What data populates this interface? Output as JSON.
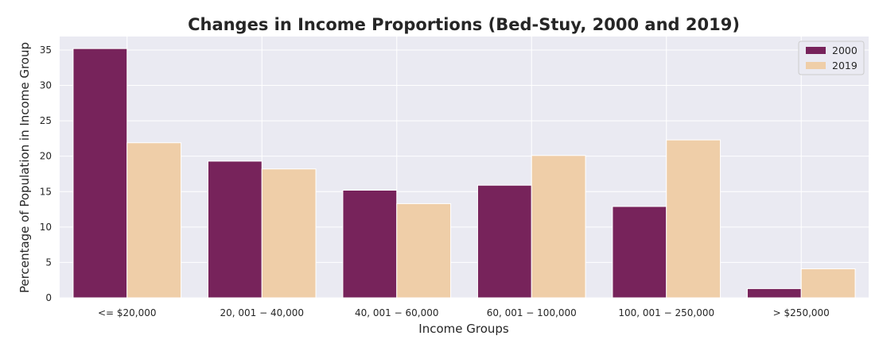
{
  "chart_data": {
    "type": "bar",
    "title": "Changes in Income Proportions (Bed-Stuy, 2000 and 2019)",
    "xlabel": "Income Groups",
    "ylabel": "Percentage of Population in Income Group",
    "categories": [
      "<= $20,000",
      "$20,001 - $40,000",
      "$40,001 - $60,000",
      "$60,001 - $100,000",
      "$100,001 - $250,000",
      "> $250,000"
    ],
    "category_display": [
      "<= $20,000",
      "20, 001 − 40,000",
      "40, 001 − 60,000",
      "60, 001 − 100,000",
      "100, 001 − 250,000",
      "> $250,000"
    ],
    "series": [
      {
        "name": "2000",
        "color": "#77235b",
        "values": [
          35.2,
          19.3,
          15.2,
          15.9,
          12.9,
          1.3
        ]
      },
      {
        "name": "2019",
        "color": "#efcea8",
        "values": [
          21.9,
          18.2,
          13.3,
          20.1,
          22.3,
          4.1
        ]
      }
    ],
    "ylim": [
      0,
      36.9
    ],
    "yticks": [
      0,
      5,
      10,
      15,
      20,
      25,
      30,
      35
    ],
    "grid": true,
    "legend": "top-right",
    "background": "#eaeaf2",
    "grid_color": "#ffffff"
  }
}
